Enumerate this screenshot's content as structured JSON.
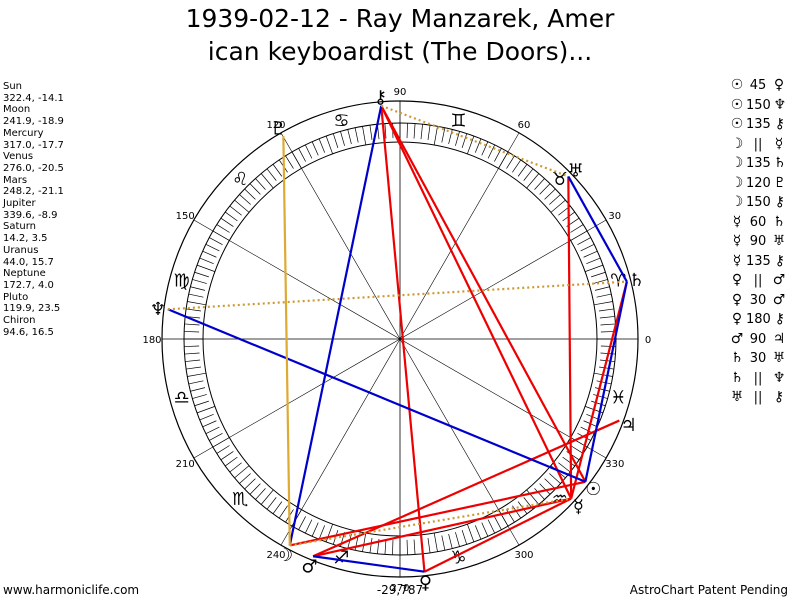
{
  "title": {
    "line1": "1939-02-12 - Ray Manzarek, Amer",
    "line2": "ican keyboardist (The Doors)..."
  },
  "positions_text": "Sun\n322.4, -14.1\nMoon\n241.9, -18.9\nMercury\n317.0, -17.7\nVenus\n276.0, -20.5\nMars\n248.2, -21.1\nJupiter\n339.6, -8.9\nSaturn\n14.2, 3.5\nUranus\n44.0, 15.7\nNeptune\n172.7, 4.0\nPluto\n119.9, 23.5\nChiron\n94.6, 16.5",
  "planets": [
    {
      "name": "Sun",
      "glyph": "☉",
      "longitude": 322.4,
      "latitude": -14.1,
      "color": "#000000"
    },
    {
      "name": "Moon",
      "glyph": "☽",
      "longitude": 241.9,
      "latitude": -18.9,
      "color": "#000000"
    },
    {
      "name": "Mercury",
      "glyph": "☿",
      "longitude": 317.0,
      "latitude": -17.7,
      "color": "#000000"
    },
    {
      "name": "Venus",
      "glyph": "♀",
      "longitude": 276.0,
      "latitude": -20.5,
      "color": "#000000"
    },
    {
      "name": "Mars",
      "glyph": "♂",
      "longitude": 248.2,
      "latitude": -21.1,
      "color": "#000000"
    },
    {
      "name": "Jupiter",
      "glyph": "♃",
      "longitude": 339.6,
      "latitude": -8.9,
      "color": "#000000"
    },
    {
      "name": "Saturn",
      "glyph": "♄",
      "longitude": 14.2,
      "latitude": 3.5,
      "color": "#000000"
    },
    {
      "name": "Uranus",
      "glyph": "♅",
      "longitude": 44.0,
      "latitude": 15.7,
      "color": "#000000"
    },
    {
      "name": "Neptune",
      "glyph": "♆",
      "longitude": 172.7,
      "latitude": 4.0,
      "color": "#000000"
    },
    {
      "name": "Pluto",
      "glyph": "♇",
      "longitude": 119.9,
      "latitude": 23.5,
      "color": "#000000"
    },
    {
      "name": "Chiron",
      "glyph": "⚷",
      "longitude": 94.6,
      "latitude": 16.5,
      "color": "#000000"
    }
  ],
  "degree_labels": [
    {
      "deg": 0,
      "text": "0"
    },
    {
      "deg": 30,
      "text": "30"
    },
    {
      "deg": 60,
      "text": "60"
    },
    {
      "deg": 90,
      "text": "90"
    },
    {
      "deg": 120,
      "text": "120"
    },
    {
      "deg": 150,
      "text": "150"
    },
    {
      "deg": 180,
      "text": "180"
    },
    {
      "deg": 210,
      "text": "210"
    },
    {
      "deg": 240,
      "text": "240"
    },
    {
      "deg": 270,
      "text": "270"
    },
    {
      "deg": 300,
      "text": "300"
    },
    {
      "deg": 330,
      "text": "330"
    }
  ],
  "signs": [
    {
      "name": "Aries",
      "glyph": "♈",
      "mid_deg": 15
    },
    {
      "name": "Taurus",
      "glyph": "♉",
      "mid_deg": 45
    },
    {
      "name": "Gemini",
      "glyph": "♊",
      "mid_deg": 75
    },
    {
      "name": "Cancer",
      "glyph": "♋",
      "mid_deg": 105
    },
    {
      "name": "Leo",
      "glyph": "♌",
      "mid_deg": 135
    },
    {
      "name": "Virgo",
      "glyph": "♍",
      "mid_deg": 165
    },
    {
      "name": "Libra",
      "glyph": "♎",
      "mid_deg": 195
    },
    {
      "name": "Scorpio",
      "glyph": "♏",
      "mid_deg": 225
    },
    {
      "name": "Sagittarius",
      "glyph": "♐",
      "mid_deg": 255
    },
    {
      "name": "Capricorn",
      "glyph": "♑",
      "mid_deg": 285
    },
    {
      "name": "Aquarius",
      "glyph": "♒",
      "mid_deg": 315
    },
    {
      "name": "Pisces",
      "glyph": "♓",
      "mid_deg": 345
    }
  ],
  "aspect_lines": [
    {
      "from": "Sun",
      "to": "Chiron",
      "color": "#ee0000",
      "style": "solid"
    },
    {
      "from": "Sun",
      "to": "Moon",
      "color": "#ee0000",
      "style": "solid"
    },
    {
      "from": "Mercury",
      "to": "Mars",
      "color": "#ee0000",
      "style": "solid"
    },
    {
      "from": "Mercury",
      "to": "Saturn",
      "color": "#ee0000",
      "style": "solid"
    },
    {
      "from": "Mercury",
      "to": "Chiron",
      "color": "#ee0000",
      "style": "solid"
    },
    {
      "from": "Mercury",
      "to": "Venus",
      "color": "#ee0000",
      "style": "solid"
    },
    {
      "from": "Mercury",
      "to": "Uranus",
      "color": "#ee0000",
      "style": "solid"
    },
    {
      "from": "Mars",
      "to": "Jupiter",
      "color": "#ee0000",
      "style": "solid"
    },
    {
      "from": "Venus",
      "to": "Chiron",
      "color": "#ee0000",
      "style": "solid"
    },
    {
      "from": "Sun",
      "to": "Neptune",
      "color": "#0000cc",
      "style": "solid"
    },
    {
      "from": "Moon",
      "to": "Chiron",
      "color": "#0000cc",
      "style": "solid"
    },
    {
      "from": "Mars",
      "to": "Venus",
      "color": "#0000cc",
      "style": "solid"
    },
    {
      "from": "Uranus",
      "to": "Saturn",
      "color": "#0000cc",
      "style": "solid"
    },
    {
      "from": "Saturn",
      "to": "Sun",
      "color": "#0000cc",
      "style": "solid"
    },
    {
      "from": "Moon",
      "to": "Pluto",
      "color": "#ddaa33",
      "style": "solid"
    },
    {
      "from": "Neptune",
      "to": "Saturn",
      "color": "#cc9933",
      "style": "dotted"
    },
    {
      "from": "Chiron",
      "to": "Uranus",
      "color": "#cc9933",
      "style": "dotted"
    },
    {
      "from": "Moon",
      "to": "Mercury",
      "color": "#cc9933",
      "style": "dotted"
    }
  ],
  "aspect_list": [
    {
      "p1": "☉",
      "aspect": "45",
      "p2": "♀"
    },
    {
      "p1": "☉",
      "aspect": "150",
      "p2": "♆"
    },
    {
      "p1": "☉",
      "aspect": "135",
      "p2": "⚷"
    },
    {
      "p1": "☽",
      "aspect": "||",
      "p2": "☿"
    },
    {
      "p1": "☽",
      "aspect": "135",
      "p2": "♄"
    },
    {
      "p1": "☽",
      "aspect": "120",
      "p2": "♇"
    },
    {
      "p1": "☽",
      "aspect": "150",
      "p2": "⚷"
    },
    {
      "p1": "☿",
      "aspect": "60",
      "p2": "♄"
    },
    {
      "p1": "☿",
      "aspect": "90",
      "p2": "♅"
    },
    {
      "p1": "☿",
      "aspect": "135",
      "p2": "⚷"
    },
    {
      "p1": "♀",
      "aspect": "||",
      "p2": "♂"
    },
    {
      "p1": "♀",
      "aspect": "30",
      "p2": "♂"
    },
    {
      "p1": "♀",
      "aspect": "180",
      "p2": "⚷"
    },
    {
      "p1": "♂",
      "aspect": "90",
      "p2": "♃"
    },
    {
      "p1": "♄",
      "aspect": "30",
      "p2": "♅"
    },
    {
      "p1": "♄",
      "aspect": "||",
      "p2": "♆"
    },
    {
      "p1": "♅",
      "aspect": "||",
      "p2": "⚷"
    }
  ],
  "bottom_value": "-29,787",
  "footer": {
    "left": "www.harmoniclife.com",
    "right": "AstroChart Patent Pending"
  },
  "colors": {
    "aspect_red": "#ee0000",
    "aspect_blue": "#0000cc",
    "aspect_gold": "#ddaa33",
    "ring": "#000000"
  }
}
